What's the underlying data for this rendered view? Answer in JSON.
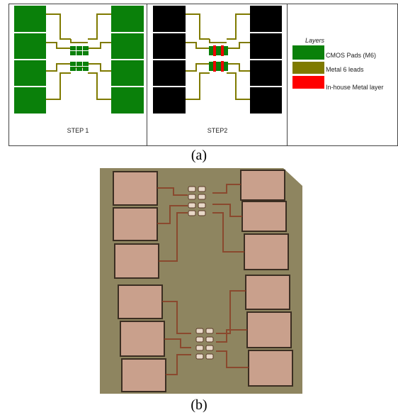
{
  "figure": {
    "panel_a": {
      "steps": [
        "STEP 1",
        "STEP2"
      ],
      "legend": {
        "title": "Layers",
        "items": [
          "CMOS Pads (M6)",
          "Metal 6 leads",
          "In-house Metal layer"
        ]
      },
      "caption": "(a)"
    },
    "panel_b": {
      "caption": "(b)"
    }
  }
}
